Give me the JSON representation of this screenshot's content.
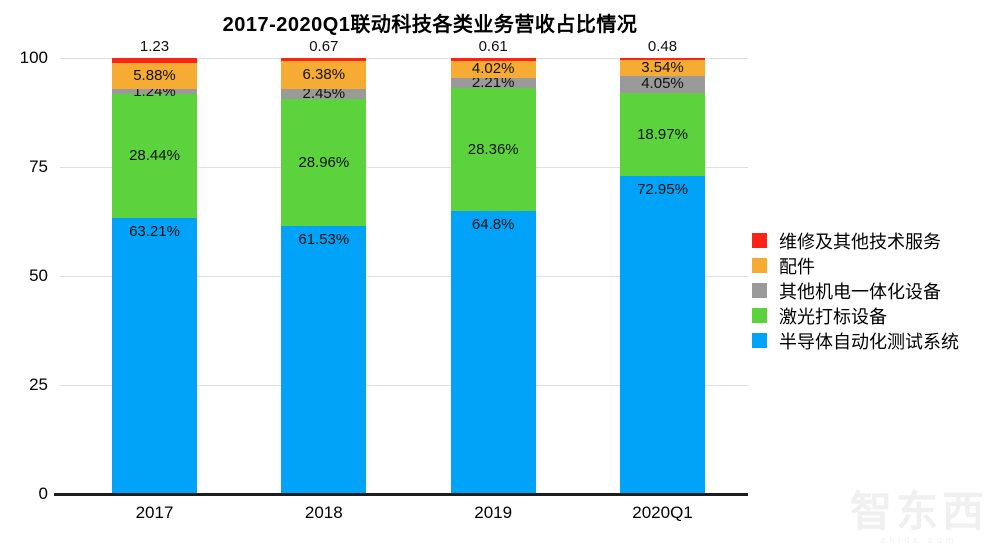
{
  "title": "2017-2020Q1联动科技各类业务营收占比情况",
  "watermark": {
    "logo": "智东西",
    "site": "zhidx.com"
  },
  "colors": {
    "background": "#ffffff",
    "gridline": "#e0e0e0",
    "axis": "#1d1d1d",
    "label_text": "#101010",
    "watermark": "#f0f0f0"
  },
  "chart_data": {
    "type": "bar",
    "stacked": true,
    "title": "2017-2020Q1联动科技各类业务营收占比情况",
    "categories": [
      "2017",
      "2018",
      "2019",
      "2020Q1"
    ],
    "series": [
      {
        "name": "半导体自动化测试系统",
        "color": "#00A3F7",
        "values": [
          63.21,
          61.53,
          64.8,
          72.95
        ],
        "labels": [
          "63.21%",
          "61.53%",
          "64.8%",
          "72.95%"
        ],
        "label_anchor": "top"
      },
      {
        "name": "激光打标设备",
        "color": "#5CD23C",
        "values": [
          28.44,
          28.96,
          28.36,
          18.97
        ],
        "labels": [
          "28.44%",
          "28.96%",
          "28.36%",
          "18.97%"
        ],
        "label_anchor": "center"
      },
      {
        "name": "其他机电一体化设备",
        "color": "#9A9A9A",
        "values": [
          1.24,
          2.45,
          2.21,
          4.05
        ],
        "labels": [
          "1.24%",
          "2.45%",
          "2.21%",
          "4.05%"
        ],
        "label_anchor": "center"
      },
      {
        "name": "配件",
        "color": "#F6AC32",
        "values": [
          5.88,
          6.38,
          4.02,
          3.54
        ],
        "labels": [
          "5.88%",
          "6.38%",
          "4.02%",
          "3.54%"
        ],
        "label_anchor": "center"
      },
      {
        "name": "维修及其他技术服务",
        "color": "#FB2216",
        "values": [
          1.23,
          0.67,
          0.61,
          0.48
        ],
        "labels": [
          "1.23",
          "0.67",
          "0.61",
          "0.48"
        ],
        "label_anchor": "above"
      }
    ],
    "y_ticks": [
      0,
      25,
      50,
      75,
      100
    ],
    "ylim": [
      0,
      100
    ],
    "grid": "horizontal",
    "legend_position": "right",
    "legend_order": "reversed"
  }
}
